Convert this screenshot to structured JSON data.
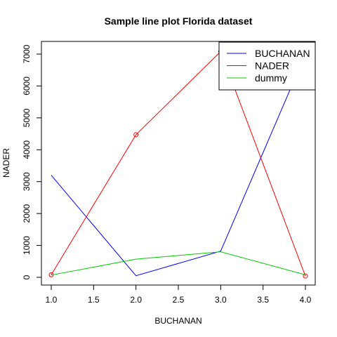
{
  "chart_data": {
    "type": "line",
    "title": "Sample line plot  Florida dataset",
    "xlabel": "BUCHANAN",
    "ylabel": "NADER",
    "xlim": [
      1.0,
      4.0
    ],
    "ylim": [
      0,
      7000
    ],
    "x_ticks": [
      "1.0",
      "1.5",
      "2.0",
      "2.5",
      "3.0",
      "3.5",
      "4.0"
    ],
    "y_ticks": [
      "0",
      "1000",
      "2000",
      "3000",
      "4000",
      "5000",
      "6000",
      "7000"
    ],
    "grid": false,
    "legend_position": "top-right",
    "x": [
      1,
      2,
      3,
      4
    ],
    "series": [
      {
        "name": "BUCHANAN",
        "color": "#0000ff",
        "values": [
          3200,
          50,
          820,
          7000
        ],
        "markers": false
      },
      {
        "name": "NADER",
        "color": "#ff0000",
        "values": [
          80,
          4470,
          7080,
          40
        ],
        "markers": true
      },
      {
        "name": "dummy",
        "color": "#00cc00",
        "values": [
          70,
          570,
          800,
          80
        ],
        "markers": false
      }
    ]
  }
}
